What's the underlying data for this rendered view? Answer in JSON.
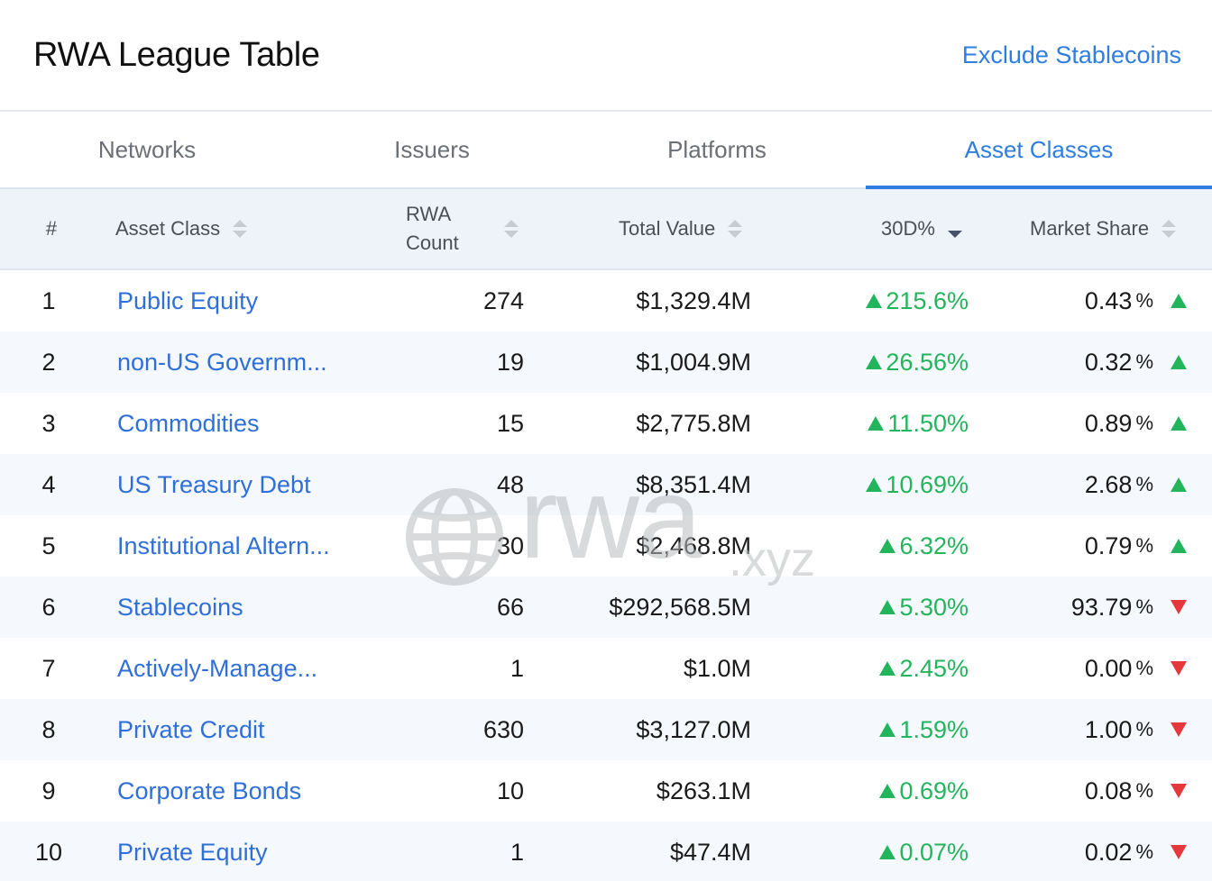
{
  "header": {
    "title": "RWA League Table",
    "exclude_link": "Exclude Stablecoins"
  },
  "tabs": [
    {
      "label": "Networks",
      "active": false
    },
    {
      "label": "Issuers",
      "active": false
    },
    {
      "label": "Platforms",
      "active": false
    },
    {
      "label": "Asset Classes",
      "active": true
    }
  ],
  "columns": {
    "rank": "#",
    "asset_class": "Asset Class",
    "rwa_count_line1": "RWA",
    "rwa_count_line2": "Count",
    "total_value": "Total Value",
    "change_30d": "30D%",
    "market_share": "Market Share"
  },
  "rows": [
    {
      "rank": "1",
      "name": "Public Equity",
      "count": "274",
      "value": "$1,329.4M",
      "change": "215.6%",
      "share": "0.43",
      "share_trend": "up"
    },
    {
      "rank": "2",
      "name": "non-US Governm...",
      "count": "19",
      "value": "$1,004.9M",
      "change": "26.56%",
      "share": "0.32",
      "share_trend": "up"
    },
    {
      "rank": "3",
      "name": "Commodities",
      "count": "15",
      "value": "$2,775.8M",
      "change": "11.50%",
      "share": "0.89",
      "share_trend": "up"
    },
    {
      "rank": "4",
      "name": "US Treasury Debt",
      "count": "48",
      "value": "$8,351.4M",
      "change": "10.69%",
      "share": "2.68",
      "share_trend": "up"
    },
    {
      "rank": "5",
      "name": "Institutional Altern...",
      "count": "30",
      "value": "$2,468.8M",
      "change": "6.32%",
      "share": "0.79",
      "share_trend": "up"
    },
    {
      "rank": "6",
      "name": "Stablecoins",
      "count": "66",
      "value": "$292,568.5M",
      "change": "5.30%",
      "share": "93.79",
      "share_trend": "down"
    },
    {
      "rank": "7",
      "name": "Actively-Manage...",
      "count": "1",
      "value": "$1.0M",
      "change": "2.45%",
      "share": "0.00",
      "share_trend": "down"
    },
    {
      "rank": "8",
      "name": "Private Credit",
      "count": "630",
      "value": "$3,127.0M",
      "change": "1.59%",
      "share": "1.00",
      "share_trend": "down"
    },
    {
      "rank": "9",
      "name": "Corporate Bonds",
      "count": "10",
      "value": "$263.1M",
      "change": "0.69%",
      "share": "0.08",
      "share_trend": "down"
    },
    {
      "rank": "10",
      "name": "Private Equity",
      "count": "1",
      "value": "$47.4M",
      "change": "0.07%",
      "share": "0.02",
      "share_trend": "down"
    }
  ],
  "share_unit": "%",
  "watermark": {
    "main": "rwa",
    "suffix": ".xyz"
  },
  "colors": {
    "accent": "#2f7de1",
    "link": "#2f6fd8",
    "positive": "#22b55c",
    "negative": "#e5383b",
    "header_bg": "#eef3fa",
    "stripe": "#f5f8fc"
  }
}
